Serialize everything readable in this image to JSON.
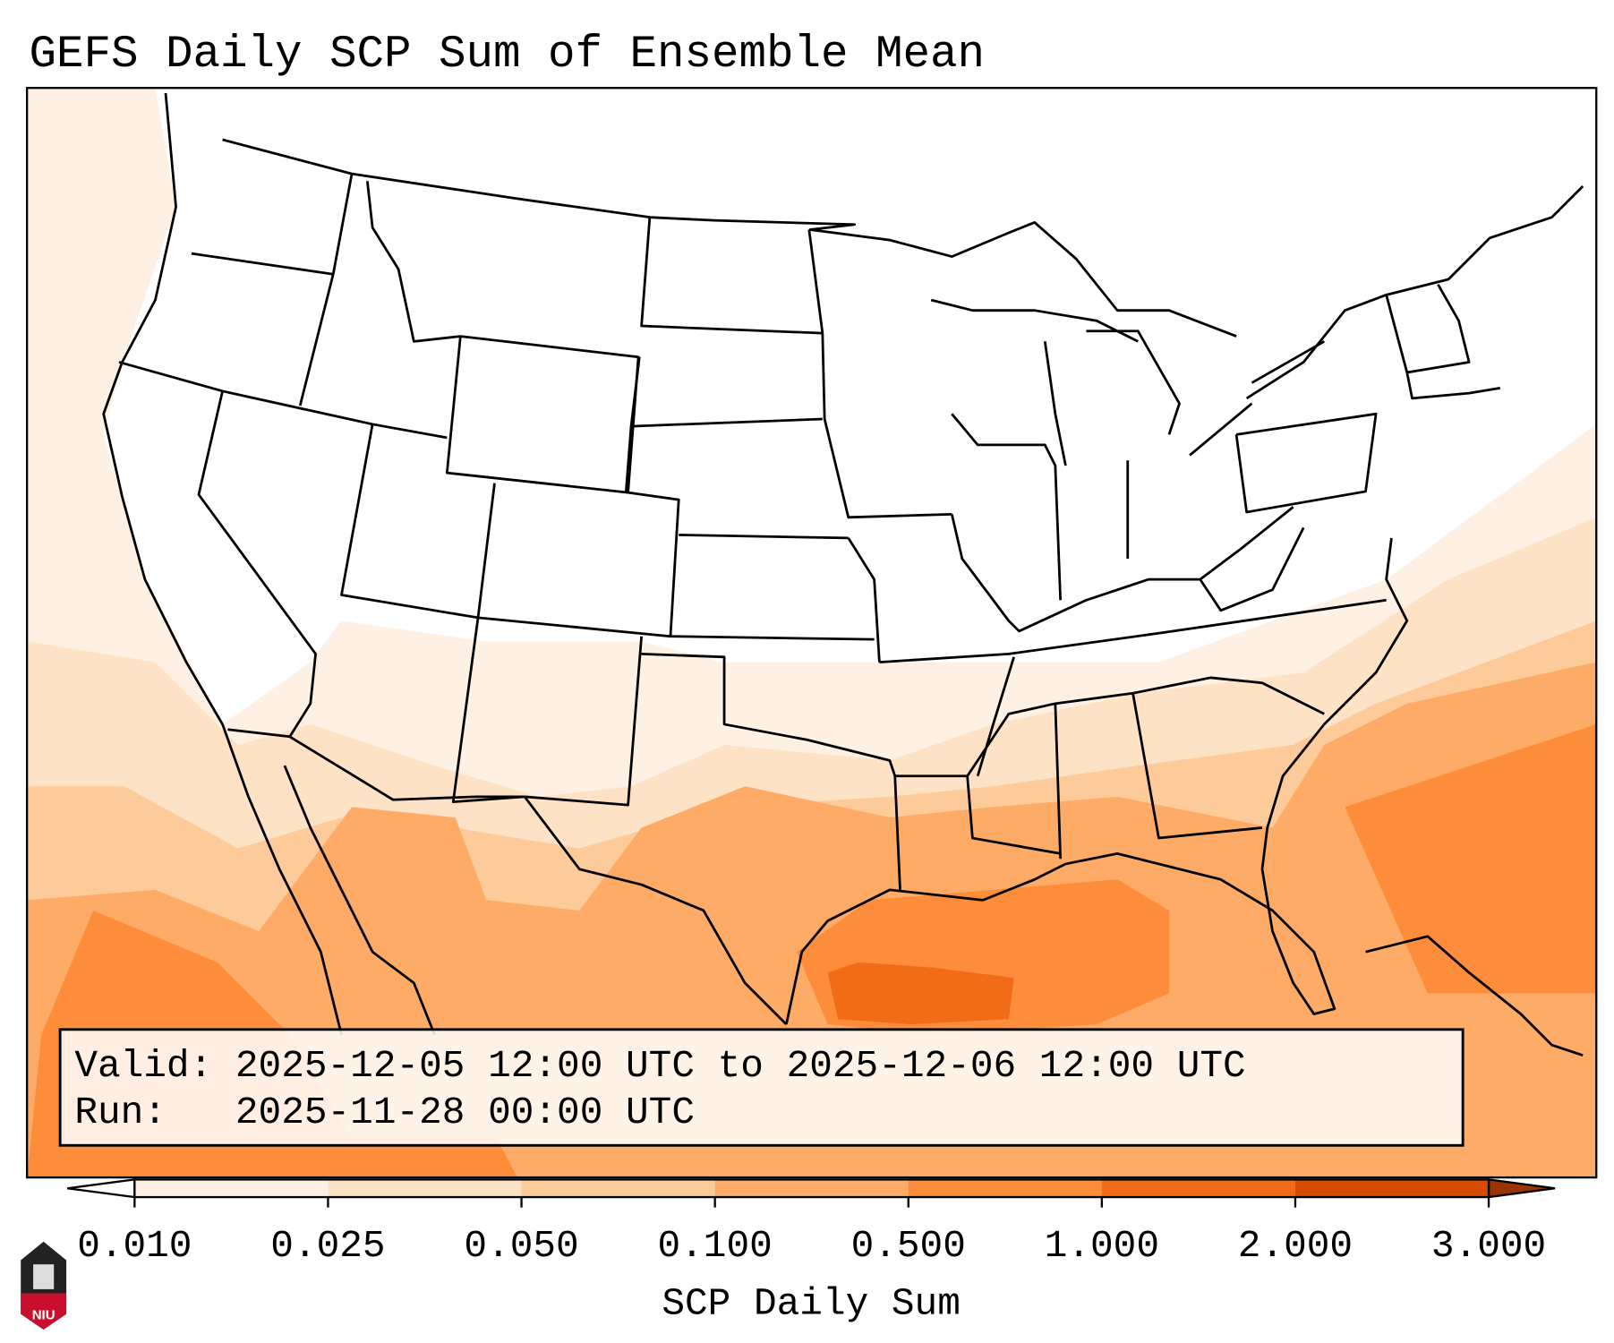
{
  "title": "GEFS Daily SCP Sum of Ensemble Mean",
  "info_box": {
    "valid_line": "Valid: 2025-12-05 12:00 UTC to 2025-12-06 12:00 UTC",
    "run_line": "Run:   2025-11-28 00:00 UTC"
  },
  "colorbar": {
    "label": "SCP Daily Sum",
    "ticks": [
      "0.010",
      "0.025",
      "0.050",
      "0.100",
      "0.500",
      "1.000",
      "2.000",
      "3.000"
    ],
    "colors": [
      "#fef0e2",
      "#fde2c6",
      "#fdca9a",
      "#fdab67",
      "#fd8c3b",
      "#f26c17",
      "#d94a03",
      "#9b3403"
    ],
    "under_color": "#ffffff"
  },
  "logo": {
    "text": "NIU"
  }
}
